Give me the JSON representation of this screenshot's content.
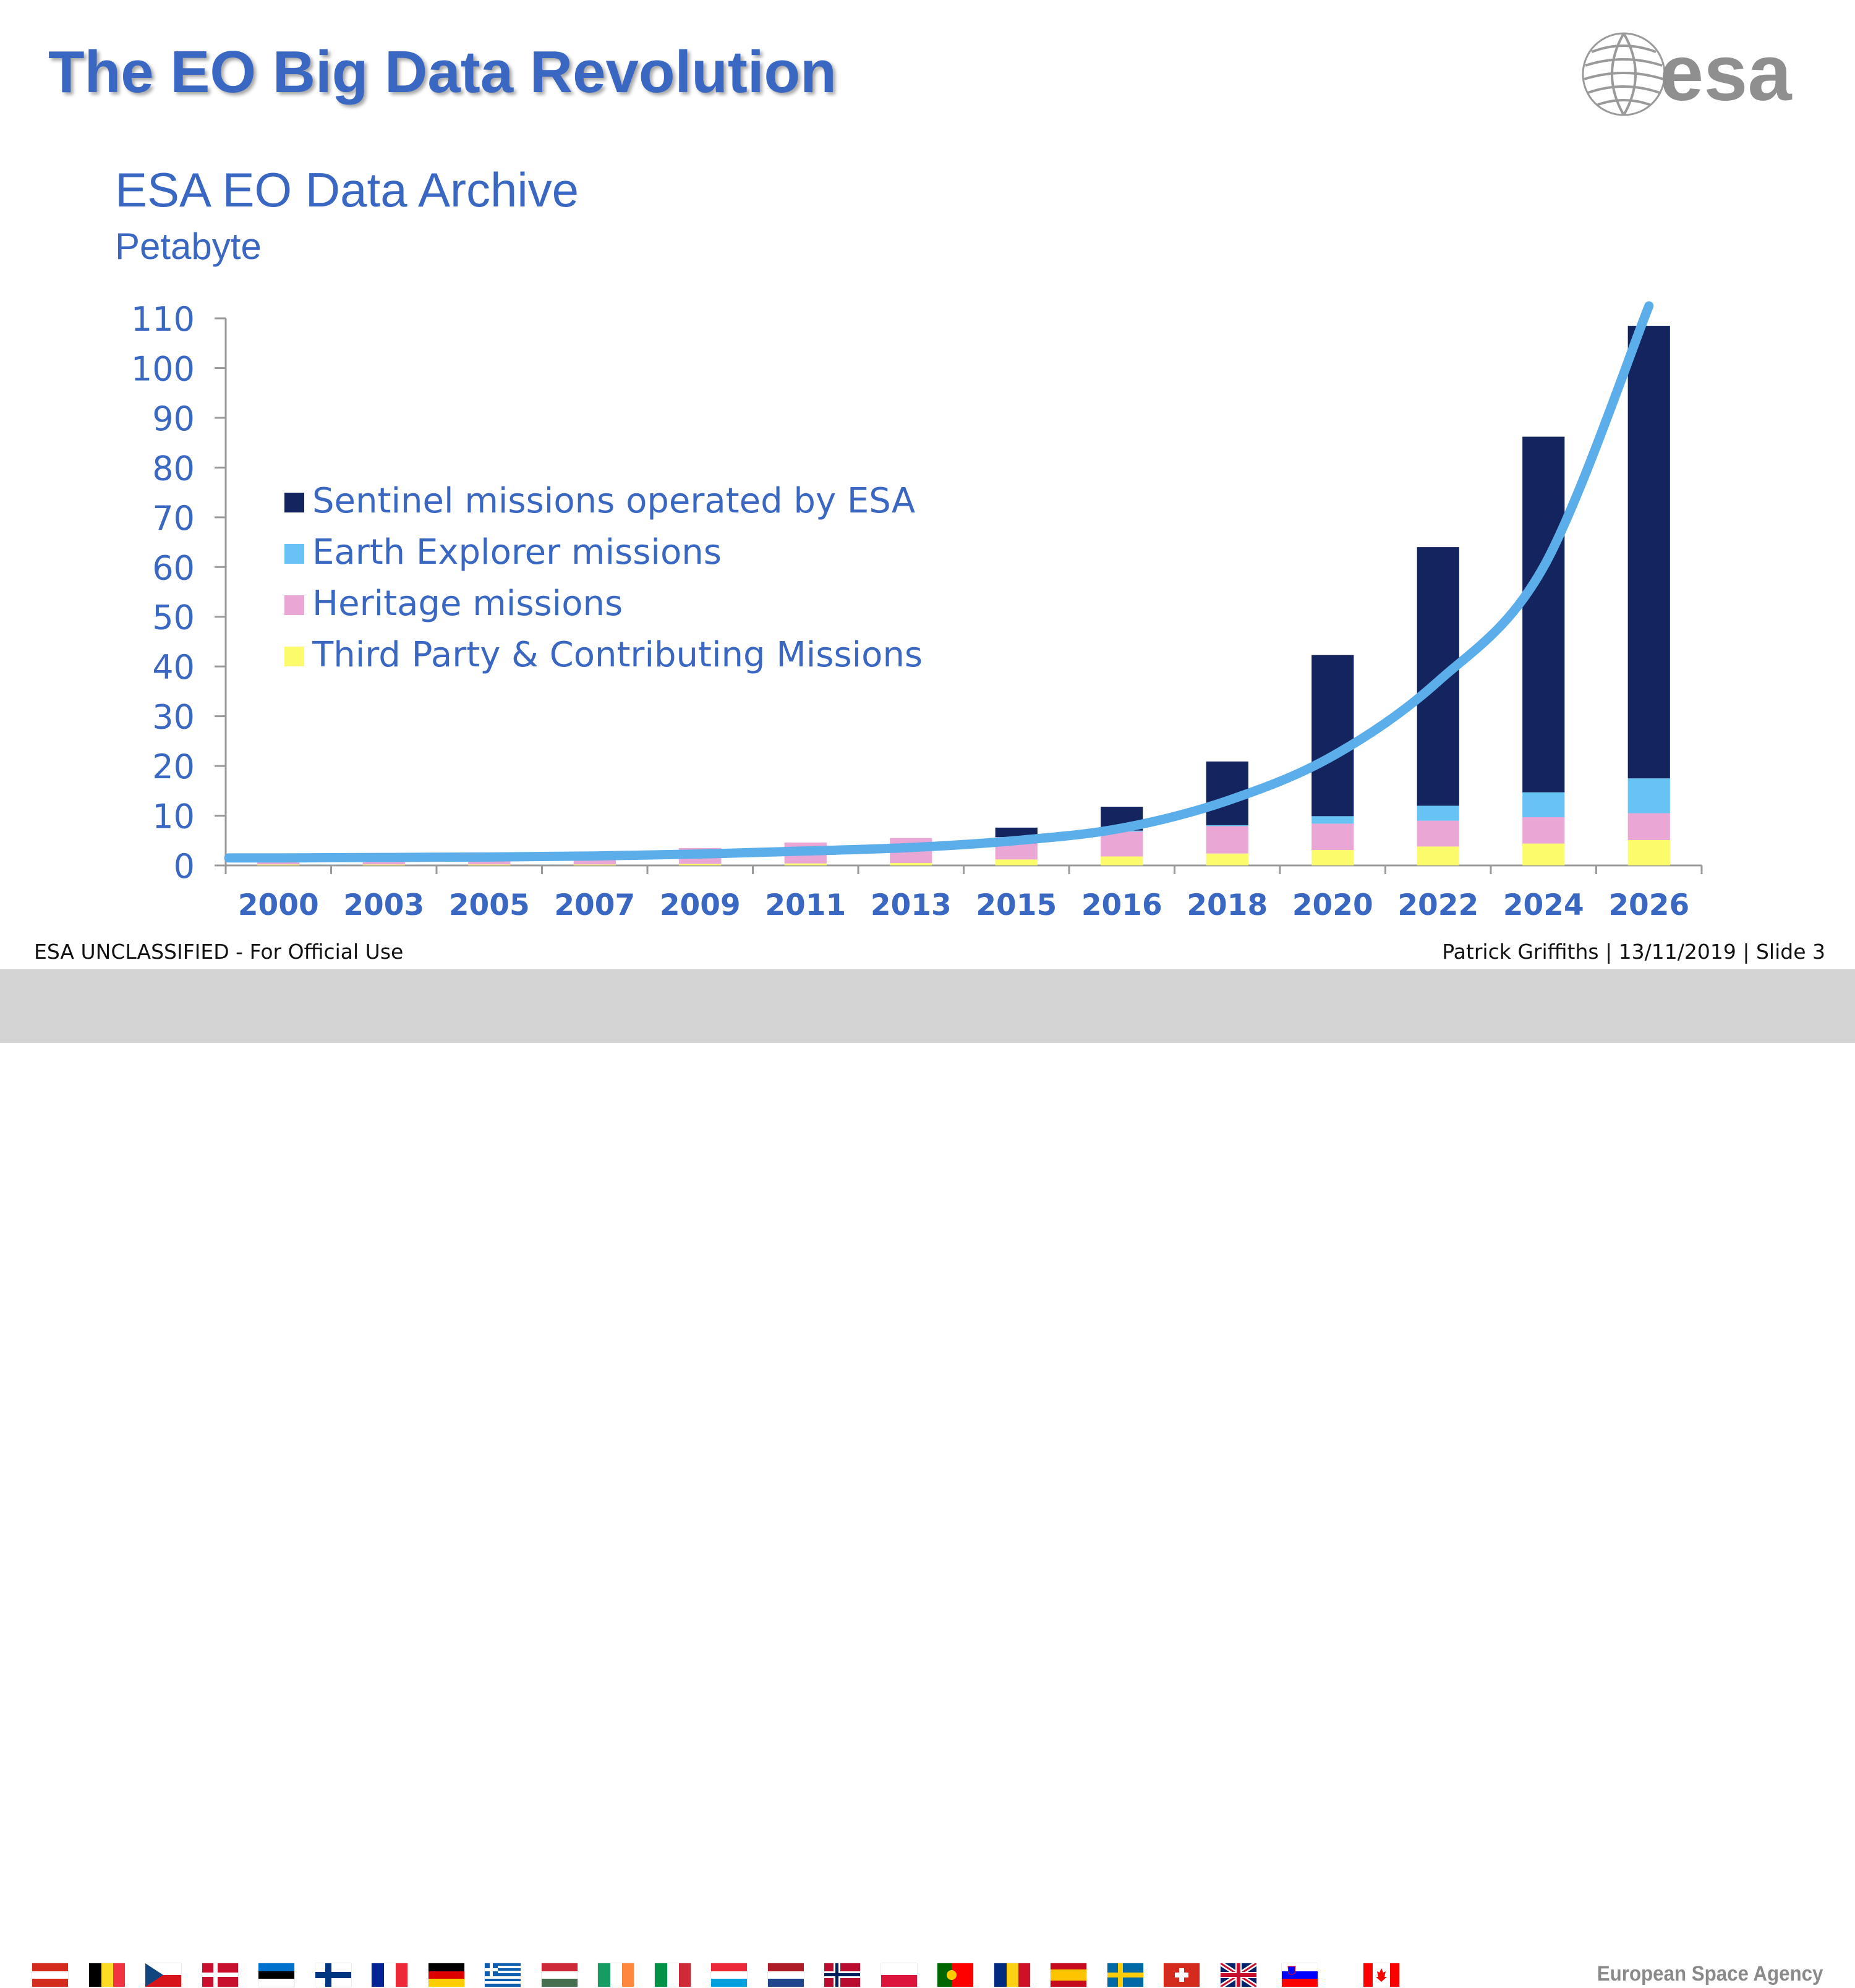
{
  "slide": {
    "title": "The EO Big Data Revolution",
    "subtitle": "ESA EO Data Archive",
    "unit": "Petabyte",
    "logo_text": "esa",
    "classification": "ESA UNCLASSIFIED - For Official Use",
    "footer_right": "Patrick Griffiths | 13/11/2019 | Slide  3",
    "agency": "European Space Agency"
  },
  "colors": {
    "title": "#3a67c1",
    "sentinel": "#13245e",
    "explorer": "#67c3f3",
    "heritage": "#eaa6d4",
    "third_party": "#fbfb6b",
    "trend": "#5caeea",
    "axis_text": "#3a67c1"
  },
  "chart_data": {
    "type": "bar",
    "stacked": true,
    "categories": [
      "2000",
      "2003",
      "2005",
      "2007",
      "2009",
      "2011",
      "2013",
      "2015",
      "2016",
      "2018",
      "2020",
      "2022",
      "2024",
      "2026"
    ],
    "series": [
      {
        "name": "Third Party & Contributing Missions",
        "color": "#fbfb6b",
        "values": [
          0.2,
          0.2,
          0.2,
          0.2,
          0.3,
          0.4,
          0.5,
          1.2,
          1.8,
          2.4,
          3.1,
          3.8,
          4.4,
          5.1
        ]
      },
      {
        "name": "Heritage missions",
        "color": "#eaa6d4",
        "values": [
          1.2,
          1.6,
          1.6,
          2.0,
          3.2,
          4.2,
          5.0,
          4.5,
          5.0,
          5.5,
          5.3,
          5.2,
          5.3,
          5.4
        ]
      },
      {
        "name": "Earth Explorer missions",
        "color": "#67c3f3",
        "values": [
          0,
          0,
          0,
          0,
          0,
          0,
          0,
          0,
          0.2,
          0.2,
          1.5,
          3.0,
          5.0,
          7.0
        ]
      },
      {
        "name": "Sentinel missions operated by ESA",
        "color": "#13245e",
        "values": [
          0,
          0,
          0,
          0,
          0,
          0,
          0,
          1.9,
          4.8,
          12.8,
          32.4,
          52.0,
          71.5,
          91.0
        ]
      }
    ],
    "legend_order": [
      "Sentinel missions operated by ESA",
      "Earth Explorer missions",
      "Heritage missions",
      "Third Party & Contributing Missions"
    ],
    "legend_position": "upper-left inside plot",
    "trendline": {
      "color": "#5caeea",
      "type": "exponential",
      "values": [
        1.5,
        1.6,
        1.7,
        1.9,
        2.3,
        2.9,
        3.6,
        5.0,
        7.5,
        13.0,
        22.0,
        37.0,
        60.0,
        112.5
      ]
    },
    "yticks": [
      0,
      10,
      20,
      30,
      40,
      50,
      60,
      70,
      80,
      90,
      100,
      110
    ],
    "ylim": [
      0,
      110
    ],
    "xlabel": "",
    "ylabel": "",
    "grid": false
  },
  "flags": [
    {
      "name": "austria-flag"
    },
    {
      "name": "belgium-flag"
    },
    {
      "name": "czech-flag"
    },
    {
      "name": "denmark-flag"
    },
    {
      "name": "estonia-flag"
    },
    {
      "name": "finland-flag"
    },
    {
      "name": "france-flag"
    },
    {
      "name": "germany-flag"
    },
    {
      "name": "greece-flag"
    },
    {
      "name": "hungary-flag"
    },
    {
      "name": "ireland-flag"
    },
    {
      "name": "italy-flag"
    },
    {
      "name": "luxembourg-flag"
    },
    {
      "name": "netherlands-flag"
    },
    {
      "name": "norway-flag"
    },
    {
      "name": "poland-flag"
    },
    {
      "name": "portugal-flag"
    },
    {
      "name": "romania-flag"
    },
    {
      "name": "spain-flag"
    },
    {
      "name": "sweden-flag"
    },
    {
      "name": "switzerland-flag"
    },
    {
      "name": "uk-flag"
    },
    {
      "name": "slovenia-flag"
    },
    {
      "name": "canada-flag"
    }
  ]
}
